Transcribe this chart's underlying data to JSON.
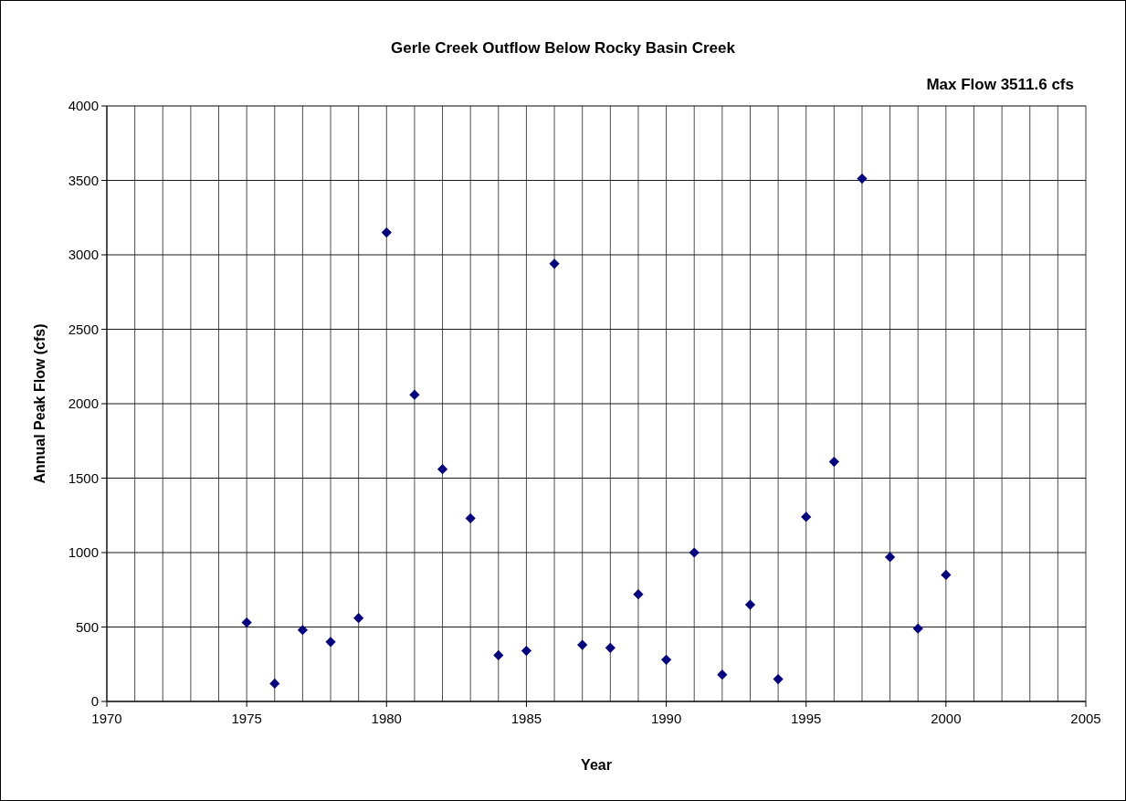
{
  "chart_data": {
    "type": "scatter",
    "title": "Gerle Creek Outflow Below Rocky Basin Creek",
    "annotations": [
      "Max Flow 3511.6 cfs"
    ],
    "xlabel": "Year",
    "ylabel": "Annual Peak Flow (cfs)",
    "x": [
      1975,
      1976,
      1977,
      1978,
      1979,
      1980,
      1981,
      1982,
      1983,
      1984,
      1985,
      1986,
      1987,
      1988,
      1989,
      1990,
      1991,
      1992,
      1993,
      1994,
      1995,
      1996,
      1997,
      1998,
      1999,
      2000
    ],
    "values": [
      530,
      120,
      480,
      400,
      560,
      3150,
      2060,
      1560,
      1230,
      310,
      340,
      2940,
      380,
      360,
      720,
      280,
      1000,
      180,
      650,
      150,
      1240,
      1610,
      3511.6,
      970,
      490,
      850
    ],
    "color": "#000080",
    "marker": "diamond",
    "grid": true,
    "xlim": [
      1970,
      2005
    ],
    "xticks": [
      1970,
      {
        "value": 1971,
        "label": null
      },
      {
        "value": 1972,
        "label": null
      },
      {
        "value": 1973,
        "label": null
      },
      {
        "value": 1974,
        "label": null
      },
      1975,
      {
        "value": 1976,
        "label": null
      },
      {
        "value": 1977,
        "label": null
      },
      {
        "value": 1978,
        "label": null
      },
      {
        "value": 1979,
        "label": null
      },
      1980,
      {
        "value": 1981,
        "label": null
      },
      {
        "value": 1982,
        "label": null
      },
      {
        "value": 1983,
        "label": null
      },
      {
        "value": 1984,
        "label": null
      },
      1985,
      {
        "value": 1986,
        "label": null
      },
      {
        "value": 1987,
        "label": null
      },
      {
        "value": 1988,
        "label": null
      },
      {
        "value": 1989,
        "label": null
      },
      1990,
      {
        "value": 1991,
        "label": null
      },
      {
        "value": 1992,
        "label": null
      },
      {
        "value": 1993,
        "label": null
      },
      {
        "value": 1994,
        "label": null
      },
      1995,
      {
        "value": 1996,
        "label": null
      },
      {
        "value": 1997,
        "label": null
      },
      {
        "value": 1998,
        "label": null
      },
      {
        "value": 1999,
        "label": null
      },
      2000,
      {
        "value": 2001,
        "label": null
      },
      {
        "value": 2002,
        "label": null
      },
      {
        "value": 2003,
        "label": null
      },
      {
        "value": 2004,
        "label": null
      },
      2005
    ],
    "ylim": [
      0,
      4000
    ],
    "yticks": [
      0,
      500,
      1000,
      1500,
      2000,
      2500,
      3000,
      3500,
      4000
    ]
  }
}
